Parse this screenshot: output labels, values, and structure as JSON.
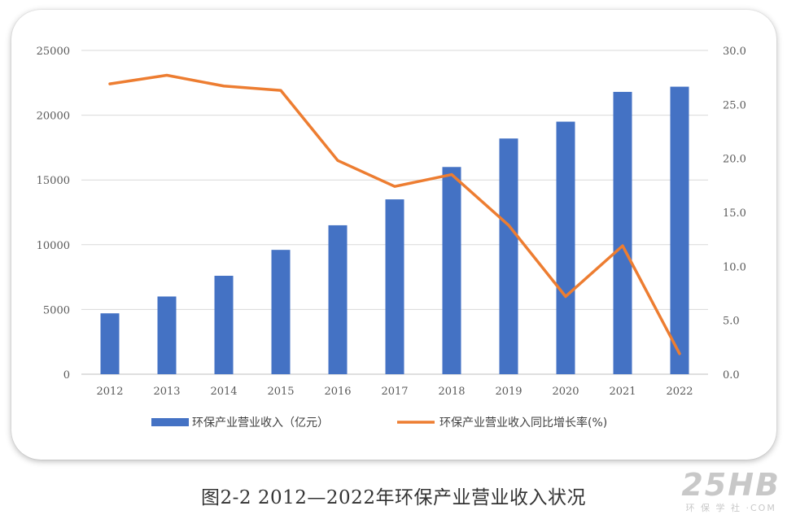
{
  "chart_data": {
    "type": "bar+line",
    "categories": [
      "2012",
      "2013",
      "2014",
      "2015",
      "2016",
      "2017",
      "2018",
      "2019",
      "2020",
      "2021",
      "2022"
    ],
    "series": [
      {
        "name": "环保产业营业收入（亿元）",
        "type": "bar",
        "axis": "left",
        "color": "#4472C4",
        "values": [
          4700,
          6000,
          7600,
          9600,
          11500,
          13500,
          16000,
          18200,
          19500,
          21800,
          22200
        ]
      },
      {
        "name": "环保产业营业收入同比增长率(%)",
        "type": "line",
        "axis": "right",
        "color": "#ED7D31",
        "values": [
          26.9,
          27.7,
          26.7,
          26.3,
          19.8,
          17.4,
          18.5,
          13.8,
          7.2,
          11.9,
          1.9
        ]
      }
    ],
    "ylim_left": [
      0,
      25000
    ],
    "yticks_left": [
      "0",
      "5000",
      "10000",
      "15000",
      "20000",
      "25000"
    ],
    "ylim_right": [
      0,
      30
    ],
    "yticks_right": [
      "0.0",
      "5.0",
      "10.0",
      "15.0",
      "20.0",
      "25.0",
      "30.0"
    ],
    "grid": true,
    "legend_position": "bottom"
  },
  "caption": "图2-2 2012—2022年环保产业营业收入状况",
  "watermark": {
    "logo": "25HB",
    "subtitle": "环 保 学 社 ·COM"
  }
}
